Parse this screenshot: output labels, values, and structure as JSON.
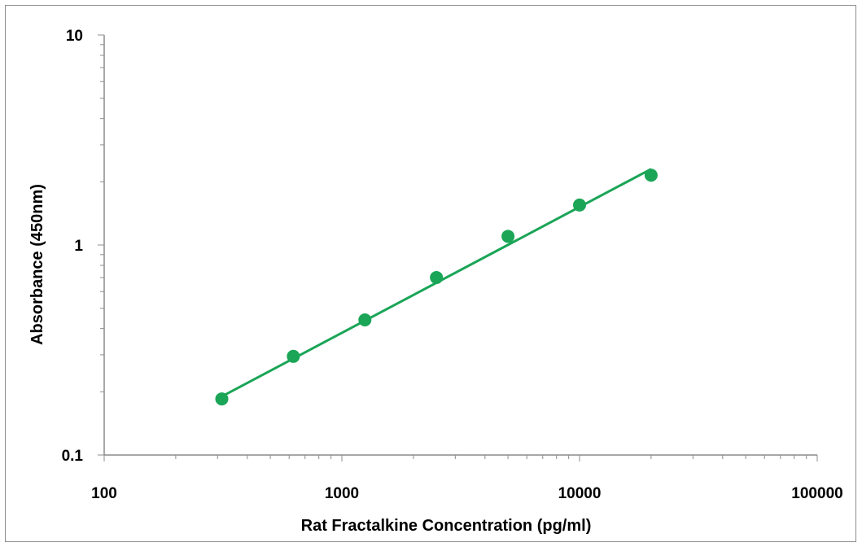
{
  "chart_data": {
    "type": "scatter",
    "xlabel": "Rat Fractalkine Concentration (pg/ml)",
    "ylabel": "Absorbance (450nm)",
    "xscale": "log",
    "yscale": "log",
    "xlim": [
      100,
      100000
    ],
    "ylim": [
      0.1,
      10
    ],
    "x_tick_labels": [
      "100",
      "1000",
      "10000",
      "100000"
    ],
    "y_tick_labels": [
      "0.1",
      "1",
      "10"
    ],
    "grid": false,
    "legend": "none",
    "colors": {
      "series": "#1aa557",
      "axis": "#8c8c8c",
      "frame": "#8c8c8c"
    },
    "series": [
      {
        "x": [
          312.5,
          625,
          1250,
          2500,
          5000,
          10000,
          20000
        ],
        "y": [
          0.185,
          0.295,
          0.44,
          0.7,
          1.1,
          1.55,
          2.15
        ],
        "trendline": {
          "type": "power",
          "x_range": [
            312.5,
            20000
          ],
          "y_range": [
            0.19,
            2.3
          ]
        }
      }
    ]
  }
}
